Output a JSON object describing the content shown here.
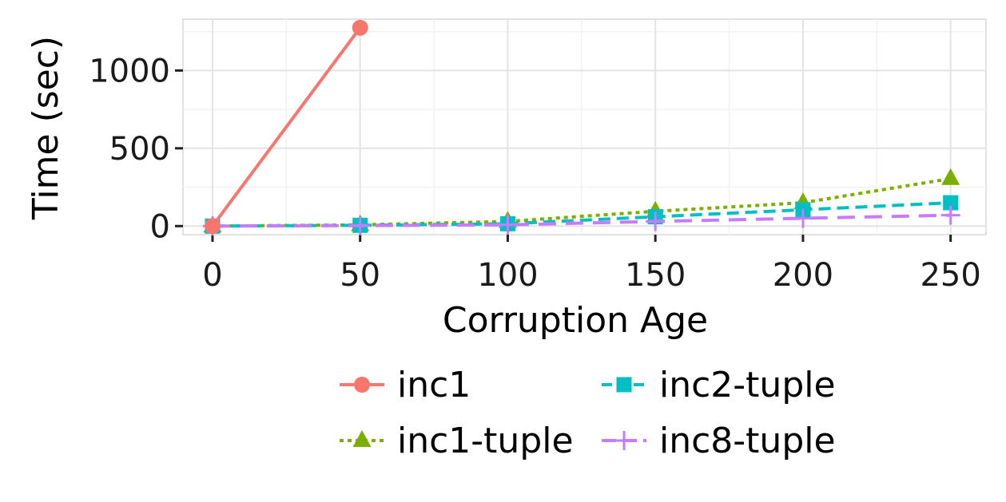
{
  "chart_data": {
    "type": "line",
    "xlabel": "Corruption Age",
    "ylabel": "Time (sec)",
    "x_ticks": [
      0,
      50,
      100,
      150,
      200,
      250
    ],
    "y_ticks": [
      0,
      500,
      1000
    ],
    "xlim": [
      -10,
      262
    ],
    "ylim": [
      -55,
      1330
    ],
    "grid": true,
    "legend_position": "bottom",
    "series": [
      {
        "name": "inc1",
        "color": "#F8766D",
        "marker": "circle",
        "dash": "solid",
        "x": [
          0,
          50
        ],
        "y": [
          0,
          1275
        ]
      },
      {
        "name": "inc1-tuple",
        "color": "#7CAE00",
        "marker": "triangle",
        "dash": "dotted",
        "x": [
          0,
          50,
          100,
          150,
          200,
          250
        ],
        "y": [
          0,
          8,
          30,
          95,
          150,
          305
        ]
      },
      {
        "name": "inc2-tuple",
        "color": "#00BFC4",
        "marker": "square",
        "dash": "dashed",
        "x": [
          0,
          50,
          100,
          150,
          200,
          250
        ],
        "y": [
          0,
          5,
          15,
          60,
          105,
          150
        ]
      },
      {
        "name": "inc8-tuple",
        "color": "#C77CFF",
        "marker": "plus",
        "dash": "longdash",
        "x": [
          0,
          50,
          100,
          150,
          200,
          250
        ],
        "y": [
          0,
          3,
          8,
          30,
          50,
          70
        ]
      }
    ]
  }
}
